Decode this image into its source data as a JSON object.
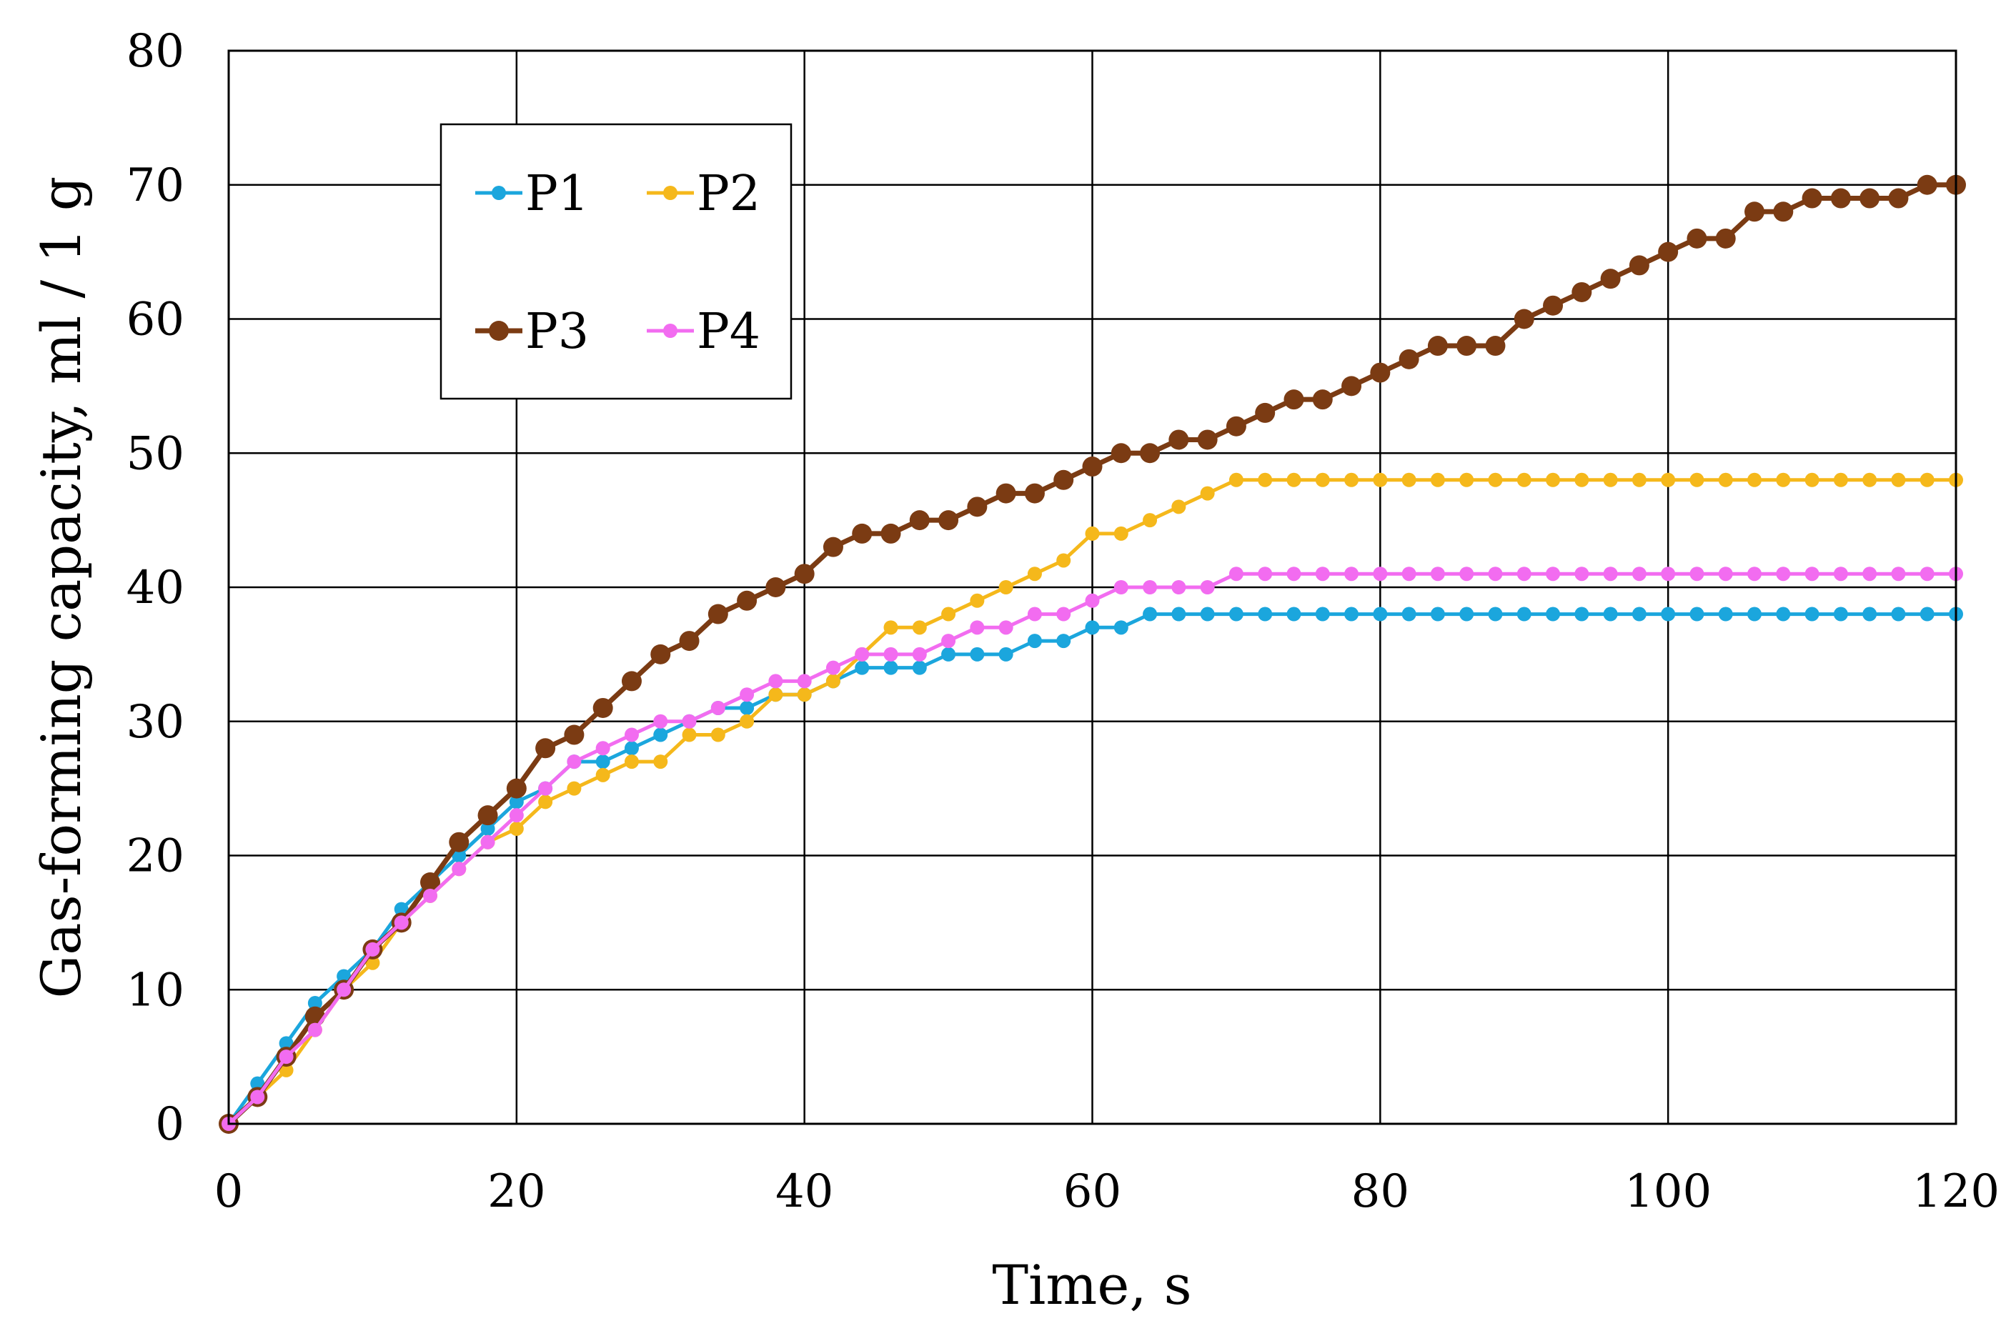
{
  "chart_data": {
    "type": "line",
    "xlabel": "Time, s",
    "ylabel": "Gas-forming capacity, ml / 1 g",
    "xlim": [
      0,
      120
    ],
    "ylim": [
      0,
      80
    ],
    "x_ticks": [
      "0",
      "20",
      "40",
      "60",
      "80",
      "100",
      "120"
    ],
    "y_ticks": [
      "0",
      "10",
      "20",
      "30",
      "40",
      "50",
      "60",
      "70",
      "80"
    ],
    "grid": true,
    "legend_position": "top-left",
    "x": [
      0,
      2,
      4,
      6,
      8,
      10,
      12,
      14,
      16,
      18,
      20,
      22,
      24,
      26,
      28,
      30,
      32,
      34,
      36,
      38,
      40,
      42,
      44,
      46,
      48,
      50,
      52,
      54,
      56,
      58,
      60,
      62,
      64,
      66,
      68,
      70,
      72,
      74,
      76,
      78,
      80,
      82,
      84,
      86,
      88,
      90,
      92,
      94,
      96,
      98,
      100,
      102,
      104,
      106,
      108,
      110,
      112,
      114,
      116,
      118,
      120
    ],
    "series": [
      {
        "name": "P1",
        "color": "#1ba6dd",
        "marker_size": "small",
        "values": [
          0,
          3,
          6,
          9,
          11,
          13,
          16,
          18,
          20,
          22,
          24,
          25,
          27,
          27,
          28,
          29,
          30,
          31,
          31,
          32,
          32,
          33,
          34,
          34,
          34,
          35,
          35,
          35,
          36,
          36,
          37,
          37,
          38,
          38,
          38,
          38,
          38,
          38,
          38,
          38,
          38,
          38,
          38,
          38,
          38,
          38,
          38,
          38,
          38,
          38,
          38,
          38,
          38,
          38,
          38,
          38,
          38,
          38,
          38,
          38,
          38
        ]
      },
      {
        "name": "P2",
        "color": "#f5b81b",
        "marker_size": "small",
        "values": [
          0,
          2,
          4,
          7,
          10,
          12,
          15,
          17,
          19,
          21,
          22,
          24,
          25,
          26,
          27,
          27,
          29,
          29,
          30,
          32,
          32,
          33,
          35,
          37,
          37,
          38,
          39,
          40,
          41,
          42,
          44,
          44,
          45,
          46,
          47,
          48,
          48,
          48,
          48,
          48,
          48,
          48,
          48,
          48,
          48,
          48,
          48,
          48,
          48,
          48,
          48,
          48,
          48,
          48,
          48,
          48,
          48,
          48,
          48,
          48,
          48
        ]
      },
      {
        "name": "P3",
        "color": "#7b3b13",
        "marker_size": "large",
        "values": [
          0,
          2,
          5,
          8,
          10,
          13,
          15,
          18,
          21,
          23,
          25,
          28,
          29,
          31,
          33,
          35,
          36,
          38,
          39,
          40,
          41,
          43,
          44,
          44,
          45,
          45,
          46,
          47,
          47,
          48,
          49,
          50,
          50,
          51,
          51,
          52,
          53,
          54,
          54,
          55,
          56,
          57,
          58,
          58,
          58,
          60,
          61,
          62,
          63,
          64,
          65,
          66,
          66,
          68,
          68,
          69,
          69,
          69,
          69,
          70,
          70
        ]
      },
      {
        "name": "P4",
        "color": "#f26cf0",
        "marker_size": "small",
        "values": [
          0,
          2,
          5,
          7,
          10,
          13,
          15,
          17,
          19,
          21,
          23,
          25,
          27,
          28,
          29,
          30,
          30,
          31,
          32,
          33,
          33,
          34,
          35,
          35,
          35,
          36,
          37,
          37,
          38,
          38,
          39,
          40,
          40,
          40,
          40,
          41,
          41,
          41,
          41,
          41,
          41,
          41,
          41,
          41,
          41,
          41,
          41,
          41,
          41,
          41,
          41,
          41,
          41,
          41,
          41,
          41,
          41,
          41,
          41,
          41,
          41
        ]
      }
    ]
  }
}
